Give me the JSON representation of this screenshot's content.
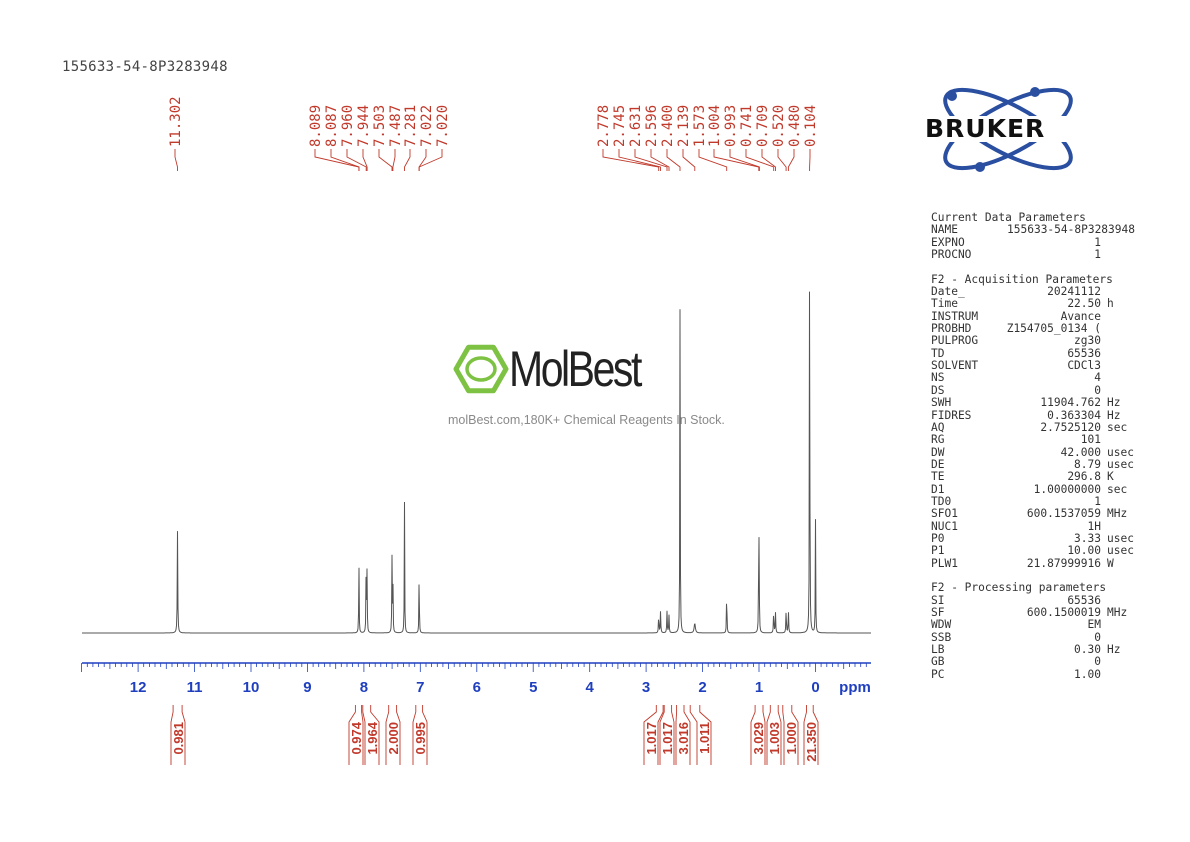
{
  "document_title": "155633-54-8P3283948",
  "watermark": {
    "brand": "MolBest",
    "tagline": "molBest.com,180K+ Chemical Reagents In Stock."
  },
  "logo": {
    "text": "BRUKER"
  },
  "parameters": {
    "current": {
      "heading": "Current Data Parameters",
      "rows": [
        {
          "name": "NAME",
          "value": "155633-54-8P3283948",
          "unit": ""
        },
        {
          "name": "EXPNO",
          "value": "1",
          "unit": ""
        },
        {
          "name": "PROCNO",
          "value": "1",
          "unit": ""
        }
      ]
    },
    "acquisition": {
      "heading": "F2 - Acquisition Parameters",
      "rows": [
        {
          "name": "Date_",
          "value": "20241112",
          "unit": ""
        },
        {
          "name": "Time",
          "value": "22.50",
          "unit": "h"
        },
        {
          "name": "INSTRUM",
          "value": "Avance",
          "unit": ""
        },
        {
          "name": "PROBHD",
          "value": "Z154705_0134 (",
          "unit": ""
        },
        {
          "name": "PULPROG",
          "value": "zg30",
          "unit": ""
        },
        {
          "name": "TD",
          "value": "65536",
          "unit": ""
        },
        {
          "name": "SOLVENT",
          "value": "CDCl3",
          "unit": ""
        },
        {
          "name": "NS",
          "value": "4",
          "unit": ""
        },
        {
          "name": "DS",
          "value": "0",
          "unit": ""
        },
        {
          "name": "SWH",
          "value": "11904.762",
          "unit": "Hz"
        },
        {
          "name": "FIDRES",
          "value": "0.363304",
          "unit": "Hz"
        },
        {
          "name": "AQ",
          "value": "2.7525120",
          "unit": "sec"
        },
        {
          "name": "RG",
          "value": "101",
          "unit": ""
        },
        {
          "name": "DW",
          "value": "42.000",
          "unit": "usec"
        },
        {
          "name": "DE",
          "value": "8.79",
          "unit": "usec"
        },
        {
          "name": "TE",
          "value": "296.8",
          "unit": "K"
        },
        {
          "name": "D1",
          "value": "1.00000000",
          "unit": "sec"
        },
        {
          "name": "TD0",
          "value": "1",
          "unit": ""
        },
        {
          "name": "SFO1",
          "value": "600.1537059",
          "unit": "MHz"
        },
        {
          "name": "NUC1",
          "value": "1H",
          "unit": ""
        },
        {
          "name": "P0",
          "value": "3.33",
          "unit": "usec"
        },
        {
          "name": "P1",
          "value": "10.00",
          "unit": "usec"
        },
        {
          "name": "PLW1",
          "value": "21.87999916",
          "unit": "W"
        }
      ]
    },
    "processing": {
      "heading": "F2 - Processing parameters",
      "rows": [
        {
          "name": "SI",
          "value": "65536",
          "unit": ""
        },
        {
          "name": "SF",
          "value": "600.1500019",
          "unit": "MHz"
        },
        {
          "name": "WDW",
          "value": "EM",
          "unit": ""
        },
        {
          "name": "SSB",
          "value": "0",
          "unit": ""
        },
        {
          "name": "LB",
          "value": "0.30",
          "unit": "Hz"
        },
        {
          "name": "GB",
          "value": "0",
          "unit": ""
        },
        {
          "name": "PC",
          "value": "1.00",
          "unit": ""
        }
      ]
    }
  },
  "colors": {
    "spectrum": "#555555",
    "annotation": "#c0392b",
    "axis": "#1f3fbf",
    "watermark_green": "#7dc242",
    "bruker_blue": "#2a4ea0"
  },
  "chart_data": {
    "type": "line",
    "xlabel": "ppm",
    "x_reversed": true,
    "xlim": [
      13.0,
      -1.0
    ],
    "ticks": [
      "12",
      "11",
      "10",
      "9",
      "8",
      "7",
      "6",
      "5",
      "4",
      "3",
      "2",
      "1",
      "0"
    ],
    "tick_values": [
      12,
      11,
      10,
      9,
      8,
      7,
      6,
      5,
      4,
      3,
      2,
      1,
      0
    ],
    "ylim": [
      0,
      1.0
    ],
    "peaks": [
      {
        "ppm": 11.302,
        "h": 0.225,
        "w": 0.005
      },
      {
        "ppm": 8.089,
        "h": 0.122,
        "w": 0.004
      },
      {
        "ppm": 8.087,
        "h": 0.05,
        "w": 0.004
      },
      {
        "ppm": 7.96,
        "h": 0.175,
        "w": 0.004
      },
      {
        "ppm": 7.944,
        "h": 0.14,
        "w": 0.004
      },
      {
        "ppm": 7.503,
        "h": 0.17,
        "w": 0.004
      },
      {
        "ppm": 7.487,
        "h": 0.14,
        "w": 0.004
      },
      {
        "ppm": 7.281,
        "h": 0.29,
        "w": 0.004
      },
      {
        "ppm": 7.022,
        "h": 0.1,
        "w": 0.004
      },
      {
        "ppm": 7.02,
        "h": 0.05,
        "w": 0.004
      },
      {
        "ppm": 2.778,
        "h": 0.04,
        "w": 0.005
      },
      {
        "ppm": 2.745,
        "h": 0.048,
        "w": 0.005
      },
      {
        "ppm": 2.631,
        "h": 0.048,
        "w": 0.005
      },
      {
        "ppm": 2.596,
        "h": 0.04,
        "w": 0.005
      },
      {
        "ppm": 2.4,
        "h": 0.72,
        "w": 0.004
      },
      {
        "ppm": 2.139,
        "h": 0.022,
        "w": 0.012
      },
      {
        "ppm": 1.573,
        "h": 0.117,
        "w": 0.004
      },
      {
        "ppm": 1.004,
        "h": 0.33,
        "w": 0.004
      },
      {
        "ppm": 0.993,
        "h": 0.03,
        "w": 0.004
      },
      {
        "ppm": 0.741,
        "h": 0.05,
        "w": 0.005
      },
      {
        "ppm": 0.709,
        "h": 0.045,
        "w": 0.005
      },
      {
        "ppm": 0.52,
        "h": 0.055,
        "w": 0.005
      },
      {
        "ppm": 0.48,
        "h": 0.05,
        "w": 0.005
      },
      {
        "ppm": 0.104,
        "h": 1.0,
        "w": 0.004
      },
      {
        "ppm": 0.0,
        "h": 0.25,
        "w": 0.004
      }
    ],
    "peak_labels": [
      {
        "label": "11.302",
        "ppm": 11.302
      },
      {
        "label": "8.089",
        "ppm": 8.089
      },
      {
        "label": "8.087",
        "ppm": 8.087
      },
      {
        "label": "7.960",
        "ppm": 7.96
      },
      {
        "label": "7.944",
        "ppm": 7.944
      },
      {
        "label": "7.503",
        "ppm": 7.503
      },
      {
        "label": "7.487",
        "ppm": 7.487
      },
      {
        "label": "7.281",
        "ppm": 7.281
      },
      {
        "label": "7.022",
        "ppm": 7.022
      },
      {
        "label": "7.020",
        "ppm": 7.02
      },
      {
        "label": "2.778",
        "ppm": 2.778
      },
      {
        "label": "2.745",
        "ppm": 2.745
      },
      {
        "label": "2.631",
        "ppm": 2.631
      },
      {
        "label": "2.596",
        "ppm": 2.596
      },
      {
        "label": "2.400",
        "ppm": 2.4
      },
      {
        "label": "2.139",
        "ppm": 2.139
      },
      {
        "label": "1.573",
        "ppm": 1.573
      },
      {
        "label": "1.004",
        "ppm": 1.004
      },
      {
        "label": "0.993",
        "ppm": 0.993
      },
      {
        "label": "0.741",
        "ppm": 0.741
      },
      {
        "label": "0.709",
        "ppm": 0.709
      },
      {
        "label": "0.520",
        "ppm": 0.52
      },
      {
        "label": "0.480",
        "ppm": 0.48
      },
      {
        "label": "0.104",
        "ppm": 0.104
      }
    ],
    "integrals": [
      {
        "value": "0.981",
        "from": 11.38,
        "to": 11.22
      },
      {
        "value": "0.974",
        "from": 8.15,
        "to": 8.04
      },
      {
        "value": "1.964",
        "from": 8.02,
        "to": 7.88
      },
      {
        "value": "2.000",
        "from": 7.56,
        "to": 7.42
      },
      {
        "value": "0.995",
        "from": 7.08,
        "to": 6.96
      },
      {
        "value": "1.017",
        "from": 2.82,
        "to": 2.7
      },
      {
        "value": "1.017",
        "from": 2.68,
        "to": 2.55
      },
      {
        "value": "3.016",
        "from": 2.46,
        "to": 2.33
      },
      {
        "value": "1.011",
        "from": 2.22,
        "to": 2.05
      },
      {
        "value": "3.029",
        "from": 1.07,
        "to": 0.93
      },
      {
        "value": "1.003",
        "from": 0.8,
        "to": 0.66
      },
      {
        "value": "1.000",
        "from": 0.58,
        "to": 0.42
      },
      {
        "value": "21.350",
        "from": 0.16,
        "to": 0.04
      }
    ]
  }
}
